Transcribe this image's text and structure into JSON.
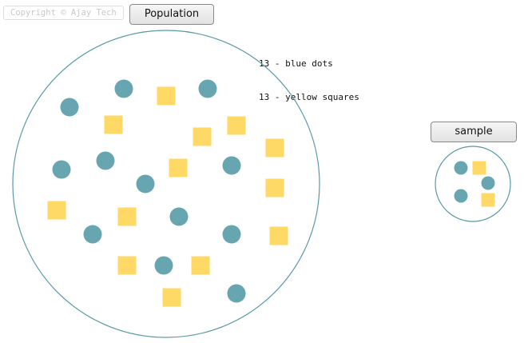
{
  "copyright": "Copyright © Ajay Tech",
  "population": {
    "button_label": "Population",
    "legend": [
      "13 - blue dots",
      "13 - yellow squares"
    ]
  },
  "sample": {
    "button_label": "sample"
  },
  "colors": {
    "circle_stroke": "#5a9aa5",
    "dot": "#67a6b0",
    "square": "#ffd966"
  },
  "chart_data": {
    "type": "diagram",
    "population": {
      "blue_dots": 13,
      "yellow_squares": 13
    },
    "sample": {
      "blue_dots": 3,
      "yellow_squares": 2
    }
  }
}
